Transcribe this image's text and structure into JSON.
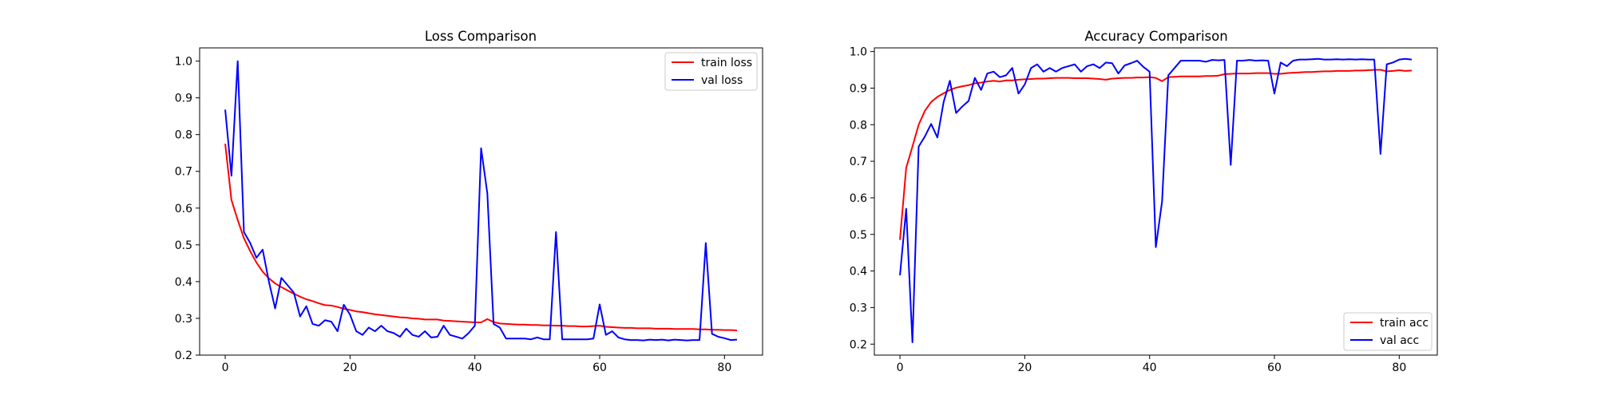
{
  "colors": {
    "train": "#ff0000",
    "val": "#0000ff",
    "axis": "#000000",
    "legend_border": "#cccccc"
  },
  "chart_data": [
    {
      "type": "line",
      "title": "Loss Comparison",
      "xlabel": "",
      "ylabel": "",
      "xlim": [
        -4.1,
        86.1
      ],
      "ylim": [
        0.2,
        1.036
      ],
      "x_ticks": [
        0,
        20,
        40,
        60,
        80
      ],
      "y_ticks": [
        0.2,
        0.3,
        0.4,
        0.5,
        0.6,
        0.7,
        0.8,
        0.9,
        1.0
      ],
      "y_tick_labels": [
        "0.2",
        "0.3",
        "0.4",
        "0.5",
        "0.6",
        "0.7",
        "0.8",
        "0.9",
        "1.0"
      ],
      "grid": false,
      "legend_position": "top-right",
      "series": [
        {
          "name": "train loss",
          "color": "#ff0000",
          "values": [
            0.775,
            0.622,
            0.568,
            0.518,
            0.483,
            0.452,
            0.427,
            0.409,
            0.395,
            0.385,
            0.376,
            0.367,
            0.359,
            0.352,
            0.347,
            0.341,
            0.336,
            0.335,
            0.331,
            0.326,
            0.323,
            0.319,
            0.317,
            0.314,
            0.311,
            0.309,
            0.307,
            0.305,
            0.303,
            0.302,
            0.3,
            0.299,
            0.297,
            0.297,
            0.297,
            0.294,
            0.293,
            0.292,
            0.291,
            0.29,
            0.289,
            0.289,
            0.298,
            0.29,
            0.286,
            0.285,
            0.284,
            0.283,
            0.283,
            0.282,
            0.282,
            0.281,
            0.281,
            0.28,
            0.28,
            0.279,
            0.279,
            0.278,
            0.278,
            0.279,
            0.28,
            0.277,
            0.276,
            0.275,
            0.274,
            0.274,
            0.273,
            0.273,
            0.273,
            0.272,
            0.272,
            0.272,
            0.271,
            0.271,
            0.271,
            0.271,
            0.27,
            0.27,
            0.269,
            0.269,
            0.268,
            0.268,
            0.267
          ]
        },
        {
          "name": "val loss",
          "color": "#0000ff",
          "values": [
            0.868,
            0.688,
            1.0,
            0.535,
            0.505,
            0.465,
            0.487,
            0.4,
            0.327,
            0.41,
            0.39,
            0.37,
            0.305,
            0.333,
            0.285,
            0.28,
            0.295,
            0.291,
            0.265,
            0.337,
            0.31,
            0.265,
            0.255,
            0.275,
            0.265,
            0.28,
            0.265,
            0.26,
            0.25,
            0.272,
            0.255,
            0.25,
            0.265,
            0.248,
            0.25,
            0.28,
            0.255,
            0.25,
            0.245,
            0.26,
            0.28,
            0.763,
            0.64,
            0.285,
            0.275,
            0.245,
            0.245,
            0.245,
            0.245,
            0.243,
            0.248,
            0.243,
            0.243,
            0.535,
            0.243,
            0.243,
            0.243,
            0.243,
            0.243,
            0.245,
            0.338,
            0.255,
            0.265,
            0.248,
            0.243,
            0.241,
            0.241,
            0.24,
            0.242,
            0.241,
            0.242,
            0.24,
            0.242,
            0.241,
            0.24,
            0.241,
            0.241,
            0.505,
            0.258,
            0.25,
            0.246,
            0.241,
            0.242
          ]
        }
      ]
    },
    {
      "type": "line",
      "title": "Accuracy Comparison",
      "xlabel": "",
      "ylabel": "",
      "xlim": [
        -4.1,
        86.1
      ],
      "ylim": [
        0.17,
        1.01
      ],
      "x_ticks": [
        0,
        20,
        40,
        60,
        80
      ],
      "y_ticks": [
        0.2,
        0.3,
        0.4,
        0.5,
        0.6,
        0.7,
        0.8,
        0.9,
        1.0
      ],
      "y_tick_labels": [
        "0.2",
        "0.3",
        "0.4",
        "0.5",
        "0.6",
        "0.7",
        "0.8",
        "0.9",
        "1.0"
      ],
      "grid": false,
      "legend_position": "bottom-right",
      "series": [
        {
          "name": "train acc",
          "color": "#ff0000",
          "values": [
            0.485,
            0.682,
            0.74,
            0.8,
            0.838,
            0.862,
            0.876,
            0.886,
            0.895,
            0.901,
            0.905,
            0.908,
            0.913,
            0.915,
            0.918,
            0.92,
            0.918,
            0.921,
            0.921,
            0.923,
            0.924,
            0.925,
            0.926,
            0.926,
            0.927,
            0.928,
            0.928,
            0.928,
            0.927,
            0.927,
            0.927,
            0.926,
            0.925,
            0.923,
            0.926,
            0.927,
            0.928,
            0.928,
            0.929,
            0.929,
            0.93,
            0.928,
            0.919,
            0.93,
            0.931,
            0.932,
            0.932,
            0.932,
            0.932,
            0.933,
            0.933,
            0.934,
            0.938,
            0.939,
            0.94,
            0.94,
            0.94,
            0.941,
            0.941,
            0.941,
            0.939,
            0.939,
            0.941,
            0.942,
            0.943,
            0.944,
            0.944,
            0.945,
            0.946,
            0.946,
            0.947,
            0.947,
            0.947,
            0.948,
            0.948,
            0.949,
            0.95,
            0.95,
            0.946,
            0.947,
            0.949,
            0.947,
            0.948
          ]
        },
        {
          "name": "val acc",
          "color": "#0000ff",
          "values": [
            0.388,
            0.57,
            0.205,
            0.74,
            0.768,
            0.802,
            0.765,
            0.862,
            0.92,
            0.832,
            0.85,
            0.865,
            0.928,
            0.895,
            0.94,
            0.945,
            0.93,
            0.935,
            0.955,
            0.885,
            0.91,
            0.955,
            0.965,
            0.945,
            0.955,
            0.945,
            0.955,
            0.96,
            0.965,
            0.945,
            0.96,
            0.965,
            0.955,
            0.97,
            0.968,
            0.94,
            0.962,
            0.968,
            0.975,
            0.958,
            0.945,
            0.465,
            0.59,
            0.935,
            0.955,
            0.975,
            0.975,
            0.975,
            0.975,
            0.972,
            0.977,
            0.976,
            0.977,
            0.69,
            0.975,
            0.975,
            0.977,
            0.975,
            0.976,
            0.975,
            0.885,
            0.97,
            0.96,
            0.975,
            0.978,
            0.978,
            0.979,
            0.98,
            0.978,
            0.978,
            0.979,
            0.978,
            0.979,
            0.978,
            0.979,
            0.978,
            0.978,
            0.72,
            0.965,
            0.97,
            0.978,
            0.98,
            0.978
          ]
        }
      ]
    }
  ]
}
